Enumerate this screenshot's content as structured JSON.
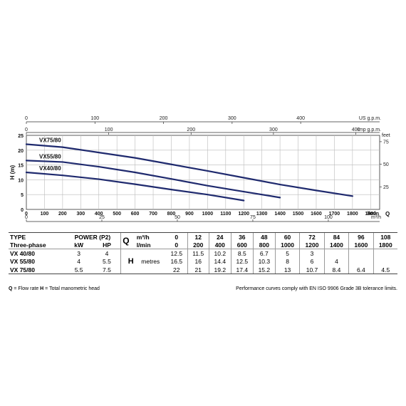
{
  "chart_data": {
    "type": "line",
    "xlabel": "Q",
    "ylabel": "H (m)",
    "x_unit": "l/min",
    "x_ticks": [
      0,
      100,
      200,
      300,
      400,
      500,
      600,
      700,
      800,
      900,
      1000,
      1100,
      1200,
      1300,
      1400,
      1500,
      1600,
      1700,
      1800,
      1900
    ],
    "xlim": [
      0,
      1950
    ],
    "ylim": [
      0,
      25
    ],
    "y_ticks": [
      0,
      5,
      10,
      15,
      20,
      25
    ],
    "top_axis_1": {
      "unit": "US g.p.m.",
      "ticks": [
        0,
        100,
        200,
        300,
        400
      ]
    },
    "top_axis_2": {
      "unit": "Imp g.p.m.",
      "ticks": [
        0,
        100,
        200,
        300,
        400
      ]
    },
    "bottom_axis_2": {
      "unit": "m³/h",
      "ticks": [
        0,
        25,
        50,
        75,
        100
      ]
    },
    "right_axis": {
      "unit": "feet",
      "ticks": [
        25,
        50,
        75
      ]
    },
    "series": [
      {
        "name": "VX40/80",
        "x": [
          0,
          200,
          400,
          600,
          800,
          1000,
          1200
        ],
        "y": [
          12.5,
          11.5,
          10.2,
          8.5,
          6.7,
          5,
          3
        ]
      },
      {
        "name": "VX55/80",
        "x": [
          0,
          200,
          400,
          600,
          800,
          1000,
          1200,
          1400
        ],
        "y": [
          16.5,
          16,
          14.4,
          12.5,
          10.3,
          8,
          6,
          4
        ]
      },
      {
        "name": "VX75/80",
        "x": [
          0,
          200,
          400,
          600,
          800,
          1000,
          1200,
          1400,
          1600,
          1800
        ],
        "y": [
          22,
          21,
          19.2,
          17.4,
          15.2,
          13,
          10.7,
          8.4,
          6.4,
          4.5
        ]
      }
    ]
  },
  "table": {
    "type_header": "TYPE",
    "phase_header": "Three-phase",
    "power_header": "POWER (P2)",
    "kw_header": "kW",
    "hp_header": "HP",
    "q_symbol": "Q",
    "h_symbol": "H",
    "m3h_unit": "m³/h",
    "lmin_unit": "l/min",
    "metres_label": "metres",
    "m3h_values": [
      "0",
      "12",
      "24",
      "36",
      "48",
      "60",
      "72",
      "84",
      "96",
      "108"
    ],
    "lmin_values": [
      "0",
      "200",
      "400",
      "600",
      "800",
      "1000",
      "1200",
      "1400",
      "1600",
      "1800"
    ],
    "rows": [
      {
        "type": "VX 40/80",
        "kw": "3",
        "hp": "4",
        "h": [
          "12.5",
          "11.5",
          "10.2",
          "8.5",
          "6.7",
          "5",
          "3",
          "",
          "",
          ""
        ]
      },
      {
        "type": "VX 55/80",
        "kw": "4",
        "hp": "5.5",
        "h": [
          "16.5",
          "16",
          "14.4",
          "12.5",
          "10.3",
          "8",
          "6",
          "4",
          "",
          ""
        ]
      },
      {
        "type": "VX 75/80",
        "kw": "5.5",
        "hp": "7.5",
        "h": [
          "22",
          "21",
          "19.2",
          "17.4",
          "15.2",
          "13",
          "10.7",
          "8.4",
          "6.4",
          "4.5"
        ]
      }
    ]
  },
  "footer": {
    "legend_q": "Q",
    "legend_q_text": " = Flow rate  ",
    "legend_h": "H",
    "legend_h_text": " = Total manometric head",
    "compliance": "Performance curves comply with EN ISO 9906 Grade 3B tolerance limits."
  },
  "colors": {
    "curve": "#1f2a6e"
  }
}
